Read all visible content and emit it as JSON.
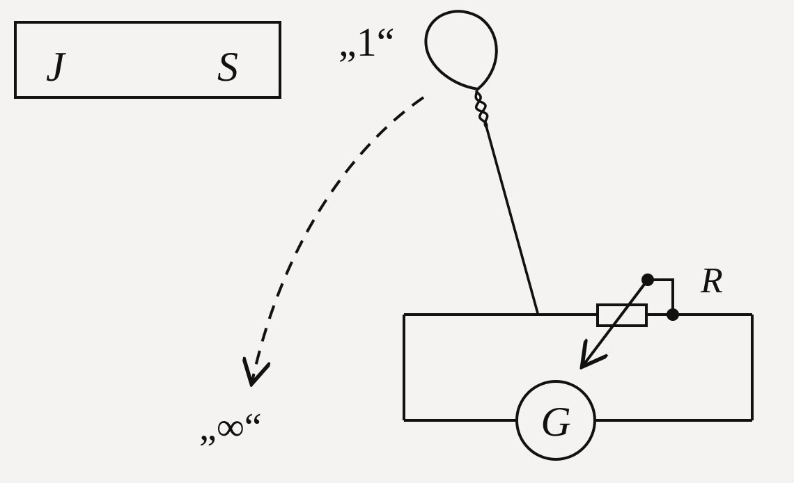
{
  "magnet": {
    "north_label": "J",
    "south_label": "S"
  },
  "loop_position_label": "„1“",
  "infinity_position_label": "„∞“",
  "resistor_label": "R",
  "galvanometer_label": "G",
  "colors": {
    "ink": "#111111",
    "paper": "#f4f3f1"
  }
}
